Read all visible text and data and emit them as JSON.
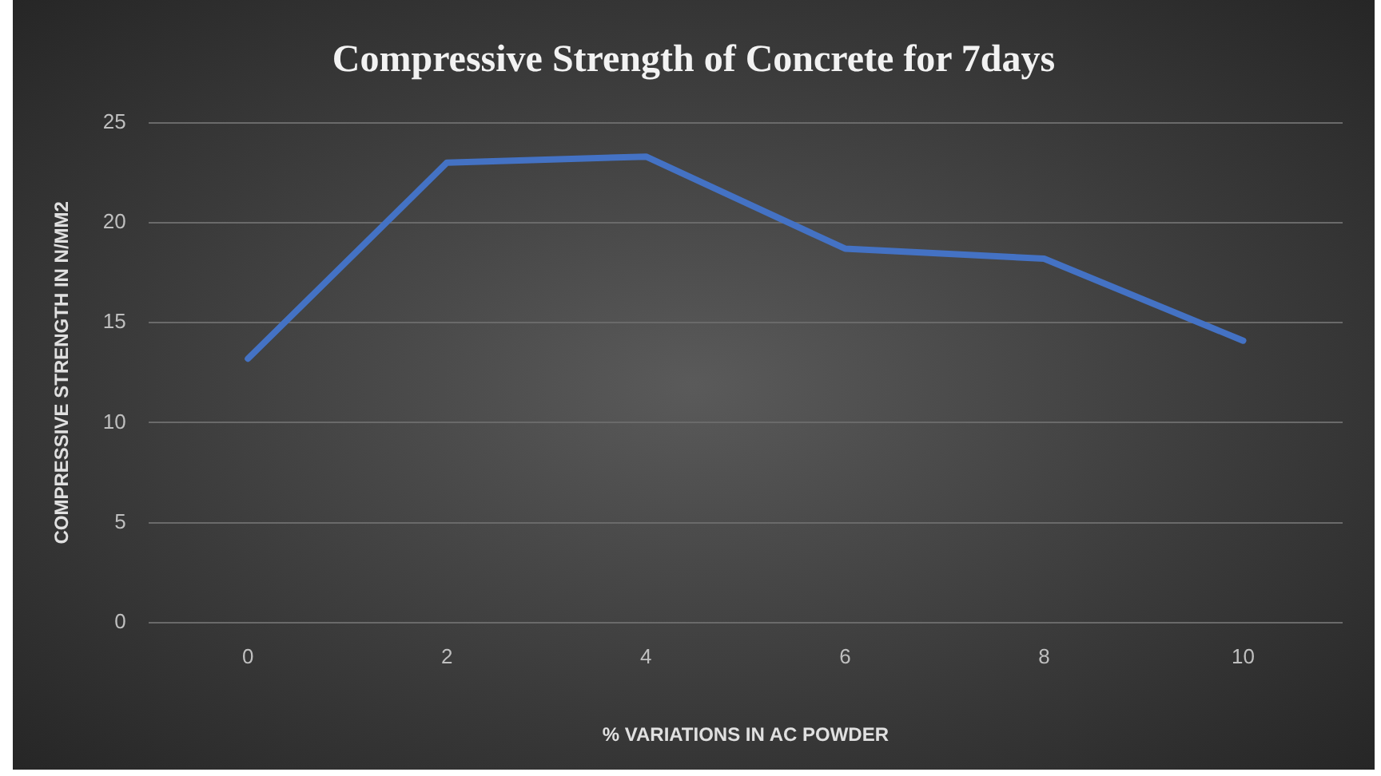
{
  "chart_data": {
    "type": "line",
    "title": "Compressive Strength of Concrete for 7days",
    "xlabel": "% VARIATIONS IN AC POWDER",
    "ylabel": "COMPRESSIVE STRENGTH IN N/MM2",
    "categories": [
      "0",
      "2",
      "4",
      "6",
      "8",
      "10"
    ],
    "series": [
      {
        "color": "#4472c4",
        "values": [
          13.2,
          23,
          23.3,
          18.7,
          18.2,
          14.1
        ]
      }
    ],
    "ylim": [
      0,
      25
    ],
    "yticks": [
      0,
      5,
      10,
      15,
      20,
      25
    ],
    "grid": "y",
    "legend": false,
    "marker": "none",
    "line_style": "solid"
  }
}
